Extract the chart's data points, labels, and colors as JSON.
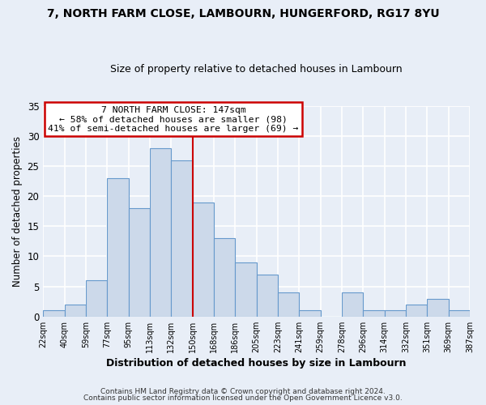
{
  "title1": "7, NORTH FARM CLOSE, LAMBOURN, HUNGERFORD, RG17 8YU",
  "title2": "Size of property relative to detached houses in Lambourn",
  "xlabel": "Distribution of detached houses by size in Lambourn",
  "ylabel": "Number of detached properties",
  "bin_labels": [
    "22sqm",
    "40sqm",
    "59sqm",
    "77sqm",
    "95sqm",
    "113sqm",
    "132sqm",
    "150sqm",
    "168sqm",
    "186sqm",
    "205sqm",
    "223sqm",
    "241sqm",
    "259sqm",
    "278sqm",
    "296sqm",
    "314sqm",
    "332sqm",
    "351sqm",
    "369sqm",
    "387sqm"
  ],
  "bar_heights": [
    1,
    2,
    6,
    23,
    18,
    28,
    26,
    19,
    13,
    9,
    7,
    4,
    1,
    0,
    4,
    1,
    1,
    2,
    3,
    1
  ],
  "bar_color": "#ccd9ea",
  "bar_edge_color": "#6699cc",
  "property_line_x": 7,
  "property_line_label": "7 NORTH FARM CLOSE: 147sqm",
  "annotation_line1": "← 58% of detached houses are smaller (98)",
  "annotation_line2": "41% of semi-detached houses are larger (69) →",
  "annotation_box_color": "#ffffff",
  "annotation_box_edge_color": "#cc0000",
  "vline_color": "#cc0000",
  "ylim": [
    0,
    35
  ],
  "yticks": [
    0,
    5,
    10,
    15,
    20,
    25,
    30,
    35
  ],
  "footer1": "Contains HM Land Registry data © Crown copyright and database right 2024.",
  "footer2": "Contains public sector information licensed under the Open Government Licence v3.0.",
  "background_color": "#e8eef7",
  "grid_color": "#ffffff",
  "plot_bg_color": "#e8eef7"
}
